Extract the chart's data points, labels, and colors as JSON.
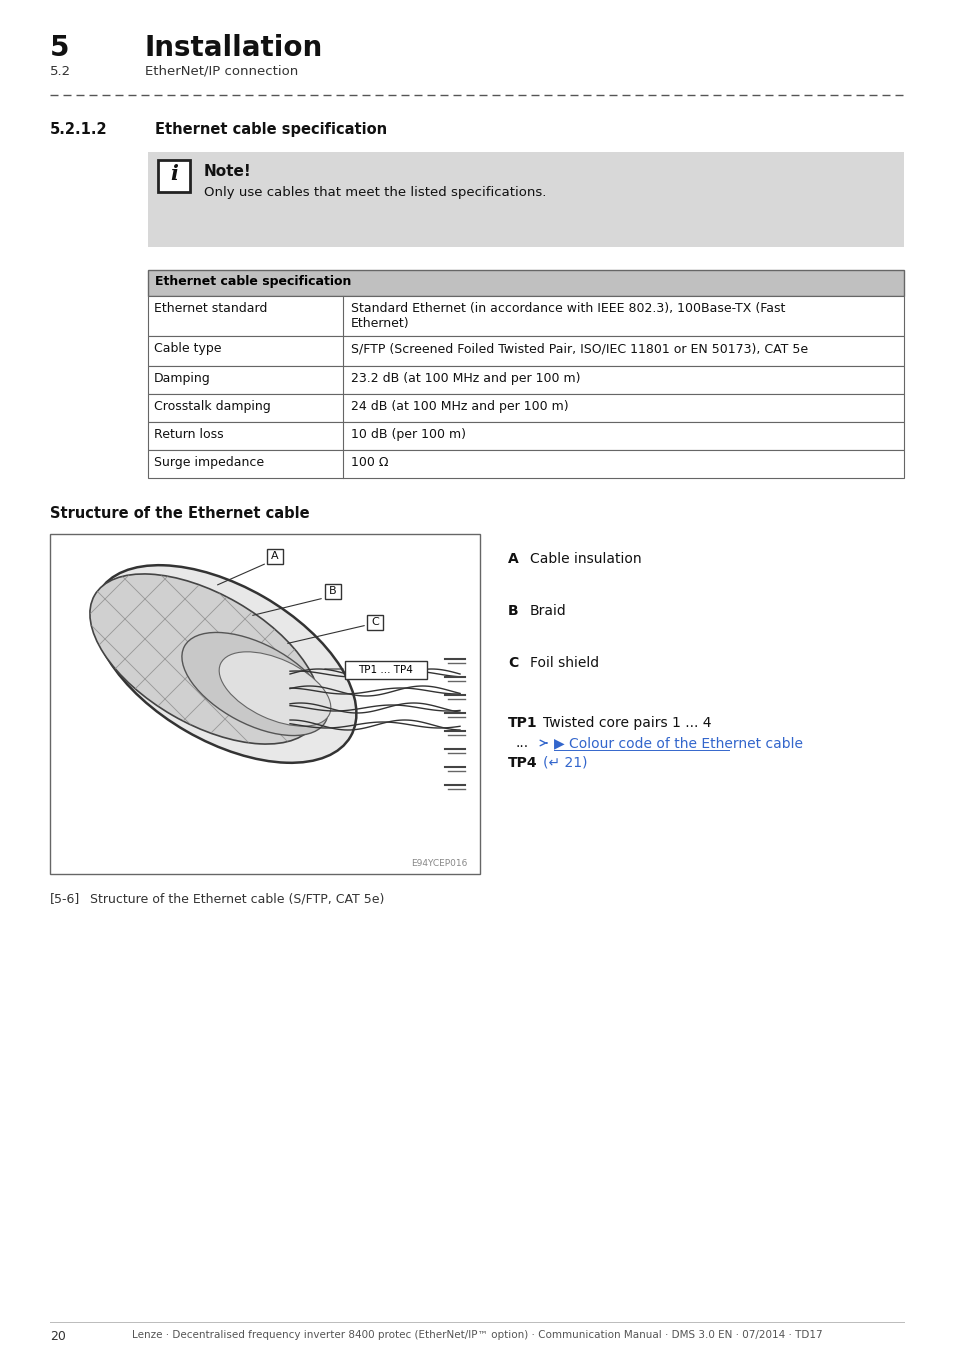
{
  "page_bg": "#ffffff",
  "header_chapter_num": "5",
  "header_chapter_title": "Installation",
  "header_sub": "5.2",
  "header_sub_title": "EtherNet/IP connection",
  "section_num": "5.2.1.2",
  "section_title": "Ethernet cable specification",
  "note_text": "Only use cables that meet the listed specifications.",
  "table_header": "Ethernet cable specification",
  "table_header_bg": "#c0c0c0",
  "table_border": "#666666",
  "table_rows": [
    [
      "Ethernet standard",
      "Standard Ethernet (in accordance with IEEE 802.3), 100Base-TX (Fast\nEthernet)"
    ],
    [
      "Cable type",
      "S/FTP (Screened Foiled Twisted Pair, ISO/IEC 11801 or EN 50173), CAT 5e"
    ],
    [
      "Damping",
      "23.2 dB (at 100 MHz and per 100 m)"
    ],
    [
      "Crosstalk damping",
      "24 dB (at 100 MHz and per 100 m)"
    ],
    [
      "Return loss",
      "10 dB (per 100 m)"
    ],
    [
      "Surge impedance",
      "100 Ω"
    ]
  ],
  "struct_title": "Structure of the Ethernet cable",
  "legend_A": "Cable insulation",
  "legend_B": "Braid",
  "legend_C": "Foil shield",
  "legend_TP1_label": "TP1",
  "legend_TP1_text": "Twisted core pairs 1 ... 4",
  "legend_dots": "...",
  "legend_link": "▶ Colour code of the Ethernet cable",
  "legend_TP4_label": "TP4",
  "legend_TP4_text": "(↵ 21)",
  "fig_caption_num": "[5-6]",
  "fig_caption_text": "Structure of the Ethernet cable (S/FTP, CAT 5e)",
  "fig_watermark": "E94YCEP016",
  "footer_text": "Lenze · Decentralised frequency inverter 8400 protec (EtherNet/IP™ option) · Communication Manual · DMS 3.0 EN · 07/2014 · TD17",
  "page_num": "20",
  "link_color": "#3366cc",
  "note_bg": "#d8d8d8"
}
